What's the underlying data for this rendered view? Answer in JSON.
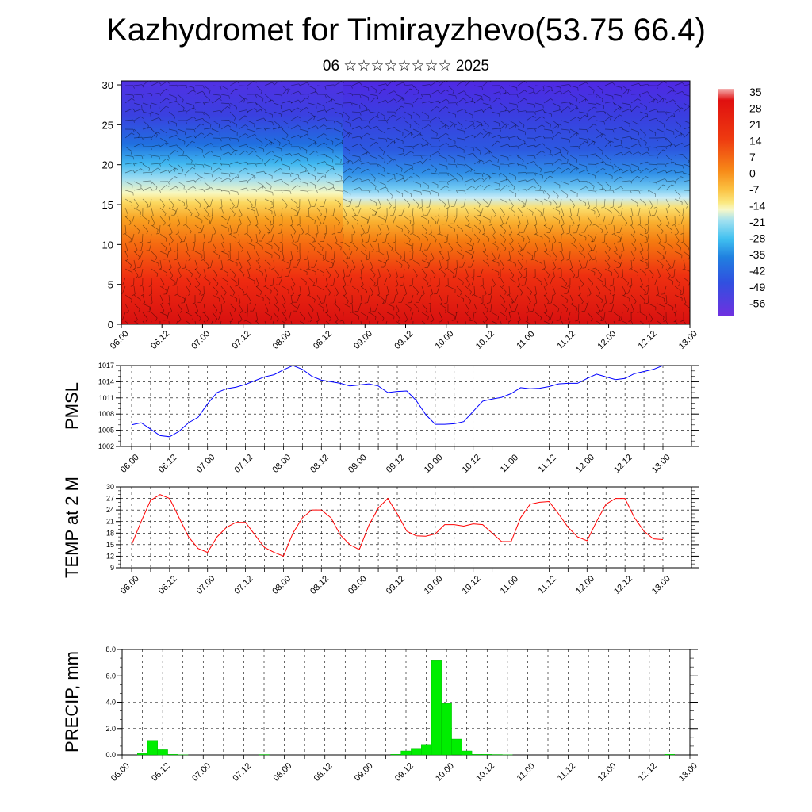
{
  "title": "Kazhydromet for Timirayzhevo(53.75 66.4)",
  "subtitle": "06 ☆☆☆☆☆☆☆☆ 2025",
  "time_labels": [
    "06.00",
    "06.12",
    "07.00",
    "07.12",
    "08.00",
    "08.12",
    "09.00",
    "09.12",
    "10.00",
    "10.12",
    "11.00",
    "11.12",
    "12.00",
    "12.12",
    "13.00"
  ],
  "chart_data": [
    {
      "type": "heatmap",
      "title": "",
      "xlabel": "",
      "ylabel": "",
      "y_ticks": [
        0,
        5,
        10,
        15,
        20,
        25,
        30
      ],
      "ylim": [
        0,
        30.5
      ],
      "colorbar": {
        "labels": [
          "35",
          "28",
          "21",
          "14",
          "7",
          "0",
          "-7",
          "-14",
          "-21",
          "-28",
          "-35",
          "-42",
          "-49",
          "-56"
        ],
        "colors": [
          "#f4b0b0",
          "#e01010",
          "#ee3010",
          "#f66010",
          "#f89020",
          "#fbc040",
          "#fbe880",
          "#f8f8c0",
          "#a0e0f0",
          "#40c0f0",
          "#2080e0",
          "#3050e0",
          "#4030e0",
          "#7030e0"
        ]
      },
      "description_levels": {
        "warm_top_level": 16,
        "transition_level": 20,
        "cold_top": 30.5
      }
    },
    {
      "type": "line",
      "name": "PMSL",
      "ylabel": "PMSL",
      "color": "#0000ff",
      "ylim": [
        1002,
        1017
      ],
      "y_ticks": [
        1002,
        1005,
        1008,
        1011,
        1014,
        1017
      ],
      "x_hours": [
        0,
        3,
        6,
        9,
        12,
        15,
        18,
        21,
        24,
        27,
        30,
        33,
        36,
        39,
        42,
        45,
        48,
        51,
        54,
        57,
        60,
        63,
        66,
        69,
        72,
        75,
        78,
        81,
        84,
        87,
        90,
        93,
        96,
        99,
        102,
        105,
        108,
        111,
        114,
        117,
        120,
        123,
        126,
        129,
        132,
        135,
        138,
        141,
        144,
        147,
        150,
        153,
        156,
        159,
        162,
        165,
        168
      ],
      "values": [
        1006.0,
        1006.4,
        1005.2,
        1004.0,
        1003.8,
        1004.8,
        1006.4,
        1007.4,
        1009.9,
        1012.0,
        1012.7,
        1013.0,
        1013.5,
        1014.2,
        1014.9,
        1015.3,
        1016.2,
        1017.0,
        1016.3,
        1015.0,
        1014.3,
        1014.0,
        1013.7,
        1013.2,
        1013.4,
        1013.6,
        1013.2,
        1012.0,
        1012.2,
        1012.3,
        1010.5,
        1007.9,
        1006.1,
        1006.1,
        1006.2,
        1006.6,
        1008.5,
        1010.4,
        1010.8,
        1011.1,
        1011.8,
        1012.9,
        1012.7,
        1012.8,
        1013.1,
        1013.6,
        1013.7,
        1013.7,
        1014.6,
        1015.4,
        1014.9,
        1014.4,
        1014.6,
        1015.5,
        1015.9,
        1016.3,
        1017.0
      ]
    },
    {
      "type": "line",
      "name": "TEMP at 2 M",
      "ylabel": "TEMP at 2 M",
      "color": "#ff0000",
      "ylim": [
        9,
        30
      ],
      "y_ticks": [
        9,
        12,
        15,
        18,
        21,
        24,
        27,
        30
      ],
      "x_hours": [
        0,
        3,
        6,
        9,
        12,
        15,
        18,
        21,
        24,
        27,
        30,
        33,
        36,
        39,
        42,
        45,
        48,
        51,
        54,
        57,
        60,
        63,
        66,
        69,
        72,
        75,
        78,
        81,
        84,
        87,
        90,
        93,
        96,
        99,
        102,
        105,
        108,
        111,
        114,
        117,
        120,
        123,
        126,
        129,
        132,
        135,
        138,
        141,
        144,
        147,
        150,
        153,
        156,
        159,
        162,
        165,
        168
      ],
      "values": [
        15.0,
        21.0,
        26.5,
        28.0,
        27.0,
        22.0,
        17.0,
        14.0,
        13.0,
        17.0,
        19.5,
        20.8,
        20.8,
        17.5,
        14.3,
        13.0,
        12.0,
        18.0,
        22.0,
        24.0,
        24.0,
        22.0,
        17.5,
        15.0,
        13.7,
        20.0,
        24.5,
        27.0,
        23.0,
        18.5,
        17.3,
        17.2,
        17.8,
        20.2,
        20.2,
        19.8,
        20.4,
        20.2,
        18.0,
        15.8,
        15.8,
        22.0,
        25.5,
        26.0,
        26.2,
        23.0,
        19.5,
        17.0,
        16.0,
        21.0,
        25.5,
        27.0,
        27.0,
        22.0,
        18.5,
        16.5,
        16.3
      ]
    },
    {
      "type": "bar",
      "name": "PRECIP, mm",
      "ylabel": "PRECIP, mm",
      "color": "#00ee00",
      "ylim": [
        0,
        8
      ],
      "y_ticks": [
        "0.0",
        "2.0",
        "4.0",
        "6.0",
        "8.0"
      ],
      "x_hours": [
        6,
        9,
        12,
        15,
        18,
        42,
        81,
        84,
        87,
        90,
        93,
        96,
        99,
        102,
        105,
        108,
        111,
        114,
        162
      ],
      "values": [
        0.1,
        1.1,
        0.4,
        0.05,
        0.02,
        0.03,
        0.05,
        0.3,
        0.5,
        0.8,
        7.2,
        3.9,
        1.2,
        0.3,
        0.05,
        0.05,
        0.03,
        0.02,
        0.05
      ]
    }
  ]
}
